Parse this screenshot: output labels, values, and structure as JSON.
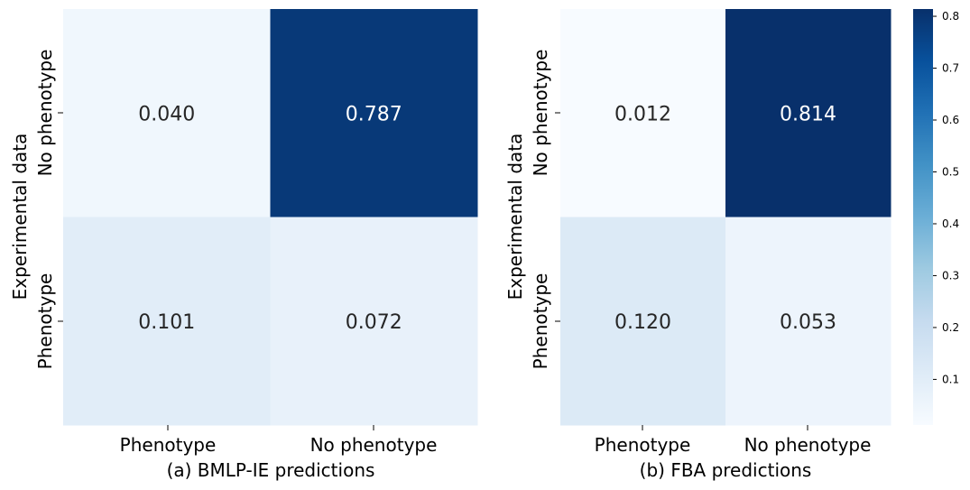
{
  "chart_data": [
    {
      "type": "heatmap",
      "title": "(a) BMLP-IE predictions",
      "ylabel": "Experimental data",
      "x_categories": [
        "Phenotype",
        "No phenotype"
      ],
      "y_categories": [
        "No phenotype",
        "Phenotype"
      ],
      "values": [
        [
          0.04,
          0.787
        ],
        [
          0.101,
          0.072
        ]
      ],
      "value_labels": [
        [
          "0.040",
          "0.787"
        ],
        [
          "0.101",
          "0.072"
        ]
      ]
    },
    {
      "type": "heatmap",
      "title": "(b) FBA predictions",
      "ylabel": "Experimental data",
      "x_categories": [
        "Phenotype",
        "No phenotype"
      ],
      "y_categories": [
        "No phenotype",
        "Phenotype"
      ],
      "values": [
        [
          0.012,
          0.814
        ],
        [
          0.12,
          0.053
        ]
      ],
      "value_labels": [
        [
          "0.012",
          "0.814"
        ],
        [
          "0.120",
          "0.053"
        ]
      ]
    }
  ],
  "colorbar": {
    "colormap": "Blues",
    "vmin": 0.012,
    "vmax": 0.814,
    "ticks": [
      0.1,
      0.2,
      0.3,
      0.4,
      0.5,
      0.6,
      0.7,
      0.8
    ],
    "tick_labels": [
      "0.1",
      "0.2",
      "0.3",
      "0.4",
      "0.5",
      "0.6",
      "0.7",
      "0.8"
    ]
  },
  "colors": {
    "light_text": "#ffffff",
    "dark_text": "#262626",
    "axis": "#000000"
  }
}
